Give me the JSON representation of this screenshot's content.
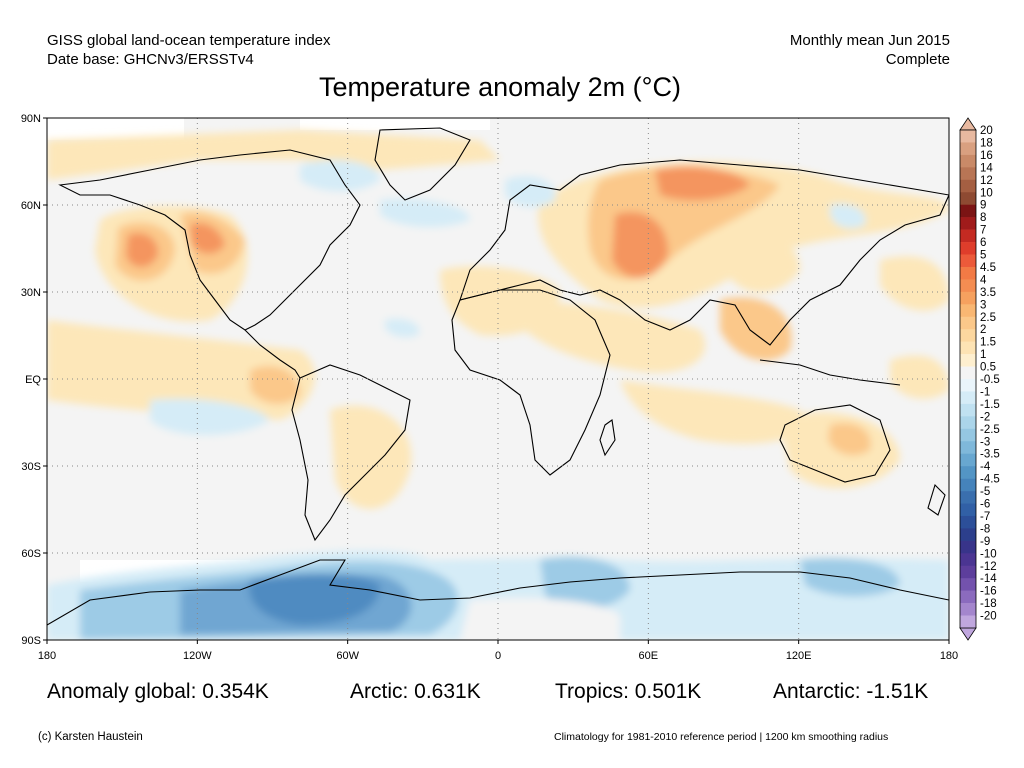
{
  "header": {
    "line1_left": "GISS global land-ocean temperature index",
    "line2_left": "Date base: GHCNv3/ERSSTv4",
    "line1_right": "Monthly mean Jun 2015",
    "line2_right": "Complete"
  },
  "title": "Temperature anomaly 2m (°C)",
  "map": {
    "lat_labels": [
      "90N",
      "60N",
      "30N",
      "EQ",
      "30S",
      "60S",
      "90S"
    ],
    "lon_labels": [
      "180",
      "120W",
      "60W",
      "0",
      "60E",
      "120E",
      "180"
    ],
    "colors": {
      "land_outline": "#000000",
      "background": "#f4f4f4",
      "warm_light": "#fde7b9",
      "warm_mid": "#fbc88a",
      "warm_strong": "#f4955e",
      "cold_light": "#d5ecf7",
      "cold_mid": "#9dcbe6",
      "cold_strong": "#4f8bc1"
    }
  },
  "legend": {
    "labels": [
      "20",
      "18",
      "16",
      "14",
      "12",
      "10",
      "9",
      "8",
      "7",
      "6",
      "5",
      "4.5",
      "4",
      "3.5",
      "3",
      "2.5",
      "2",
      "1.5",
      "1",
      "0.5",
      "-0.5",
      "-1",
      "-1.5",
      "-2",
      "-2.5",
      "-3",
      "-3.5",
      "-4",
      "-4.5",
      "-5",
      "-6",
      "-7",
      "-8",
      "-9",
      "-10",
      "-12",
      "-14",
      "-16",
      "-18",
      "-20"
    ],
    "colors": [
      "#e8b9a0",
      "#d9a080",
      "#c98a68",
      "#b87555",
      "#a55f42",
      "#8e4a32",
      "#7b1414",
      "#a01b1b",
      "#c42a22",
      "#df3d2b",
      "#ec5a3a",
      "#f27a45",
      "#f48d52",
      "#f6a15f",
      "#f9b773",
      "#fbc88a",
      "#fcd79f",
      "#fde3b4",
      "#feefcf",
      "#f4f4f4",
      "#eaf5fb",
      "#d5ecf7",
      "#c0e1f1",
      "#abd5ea",
      "#95c7e2",
      "#7fb8da",
      "#68a7d0",
      "#5395c5",
      "#4583bb",
      "#3a6fae",
      "#3160a6",
      "#2c4f99",
      "#2c3f8c",
      "#38348a",
      "#4b3592",
      "#5d3e9c",
      "#7352ad",
      "#8b6bbe",
      "#a486cd",
      "#c0a7de"
    ]
  },
  "stats": {
    "global": "Anomaly global: 0.354K",
    "arctic": "Arctic: 0.631K",
    "tropics": "Tropics: 0.501K",
    "antarctic": "Antarctic: -1.51K"
  },
  "footer": {
    "left": "(c) Karsten Haustein",
    "right": "Climatology for 1981-2010 reference period | 1200 km smoothing radius"
  }
}
